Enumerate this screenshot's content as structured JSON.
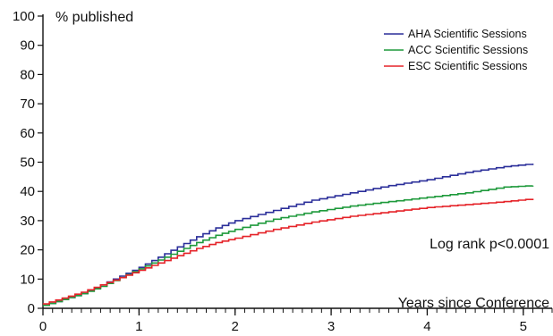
{
  "chart_data": {
    "type": "line",
    "step": true,
    "ylabel": "% published",
    "xlabel": "Years since Conference",
    "annotation": "Log rank p<0.0001",
    "xlim": [
      0,
      5.3
    ],
    "ylim": [
      0,
      100
    ],
    "x_ticks": [
      0,
      1,
      2,
      3,
      4,
      5
    ],
    "x_minor_step": 0.1,
    "y_ticks": [
      0,
      10,
      20,
      30,
      40,
      50,
      60,
      70,
      80,
      90,
      100
    ],
    "legend_position": "top-right",
    "grid": false,
    "series": [
      {
        "name": "AHA Scientific Sessions",
        "color": "#2b2f9a",
        "points": [
          [
            0,
            1
          ],
          [
            0.2,
            3
          ],
          [
            0.4,
            5
          ],
          [
            0.6,
            8
          ],
          [
            0.8,
            11
          ],
          [
            1,
            14
          ],
          [
            1.2,
            17.5
          ],
          [
            1.4,
            21
          ],
          [
            1.6,
            24.5
          ],
          [
            1.8,
            27.5
          ],
          [
            2,
            30
          ],
          [
            2.4,
            33.5
          ],
          [
            2.8,
            37
          ],
          [
            3.2,
            39.5
          ],
          [
            3.6,
            42
          ],
          [
            4,
            44
          ],
          [
            4.4,
            46.5
          ],
          [
            4.8,
            48.5
          ],
          [
            5.1,
            49.5
          ]
        ]
      },
      {
        "name": "ACC Scientific Sessions",
        "color": "#1f9a3c",
        "points": [
          [
            0,
            1
          ],
          [
            0.2,
            3
          ],
          [
            0.4,
            5
          ],
          [
            0.6,
            7.5
          ],
          [
            0.8,
            10.5
          ],
          [
            1,
            13.5
          ],
          [
            1.2,
            16.5
          ],
          [
            1.4,
            19.5
          ],
          [
            1.6,
            22.5
          ],
          [
            1.8,
            25
          ],
          [
            2,
            27
          ],
          [
            2.4,
            30.5
          ],
          [
            2.8,
            33
          ],
          [
            3.2,
            35
          ],
          [
            3.6,
            36.5
          ],
          [
            4,
            38
          ],
          [
            4.4,
            39.5
          ],
          [
            4.8,
            41.5
          ],
          [
            5.1,
            42
          ]
        ]
      },
      {
        "name": "ESC Scientific Sessions",
        "color": "#e52329",
        "points": [
          [
            0,
            1.5
          ],
          [
            0.2,
            3.5
          ],
          [
            0.4,
            5.5
          ],
          [
            0.6,
            8
          ],
          [
            0.8,
            10.5
          ],
          [
            1,
            13
          ],
          [
            1.2,
            15.5
          ],
          [
            1.4,
            18
          ],
          [
            1.6,
            20.5
          ],
          [
            1.8,
            22.5
          ],
          [
            2,
            24
          ],
          [
            2.4,
            27
          ],
          [
            2.8,
            29.5
          ],
          [
            3.2,
            31.5
          ],
          [
            3.6,
            33
          ],
          [
            4,
            34.5
          ],
          [
            4.4,
            35.5
          ],
          [
            4.8,
            36.5
          ],
          [
            5.1,
            37.5
          ]
        ]
      }
    ]
  }
}
